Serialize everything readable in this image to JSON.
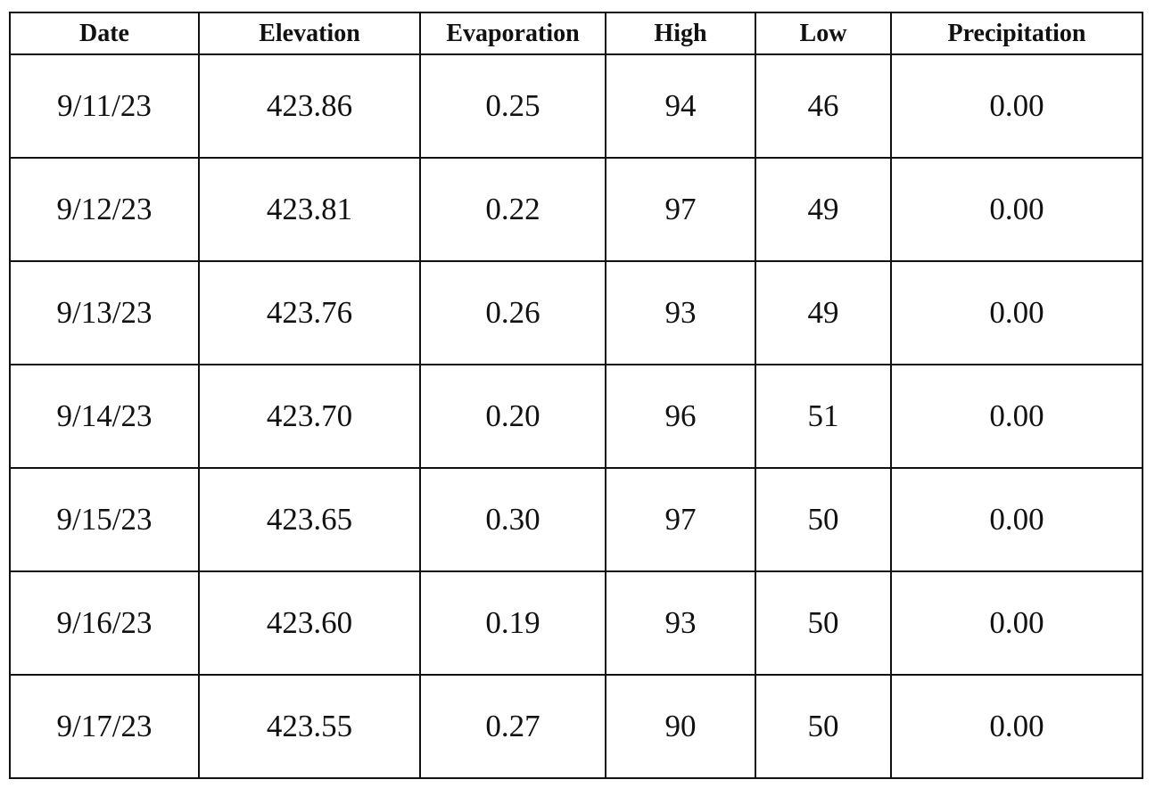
{
  "table": {
    "header": [
      "Date",
      "Elevation",
      "Evaporation",
      "High",
      "Low",
      "Precipitation"
    ],
    "rows": [
      [
        "9/11/23",
        "423.86",
        "0.25",
        "94",
        "46",
        "0.00"
      ],
      [
        "9/12/23",
        "423.81",
        "0.22",
        "97",
        "49",
        "0.00"
      ],
      [
        "9/13/23",
        "423.76",
        "0.26",
        "93",
        "49",
        "0.00"
      ],
      [
        "9/14/23",
        "423.70",
        "0.20",
        "96",
        "51",
        "0.00"
      ],
      [
        "9/15/23",
        "423.65",
        "0.30",
        "97",
        "50",
        "0.00"
      ],
      [
        "9/16/23",
        "423.60",
        "0.19",
        "93",
        "50",
        "0.00"
      ],
      [
        "9/17/23",
        "423.55",
        "0.27",
        "90",
        "50",
        "0.00"
      ]
    ]
  }
}
